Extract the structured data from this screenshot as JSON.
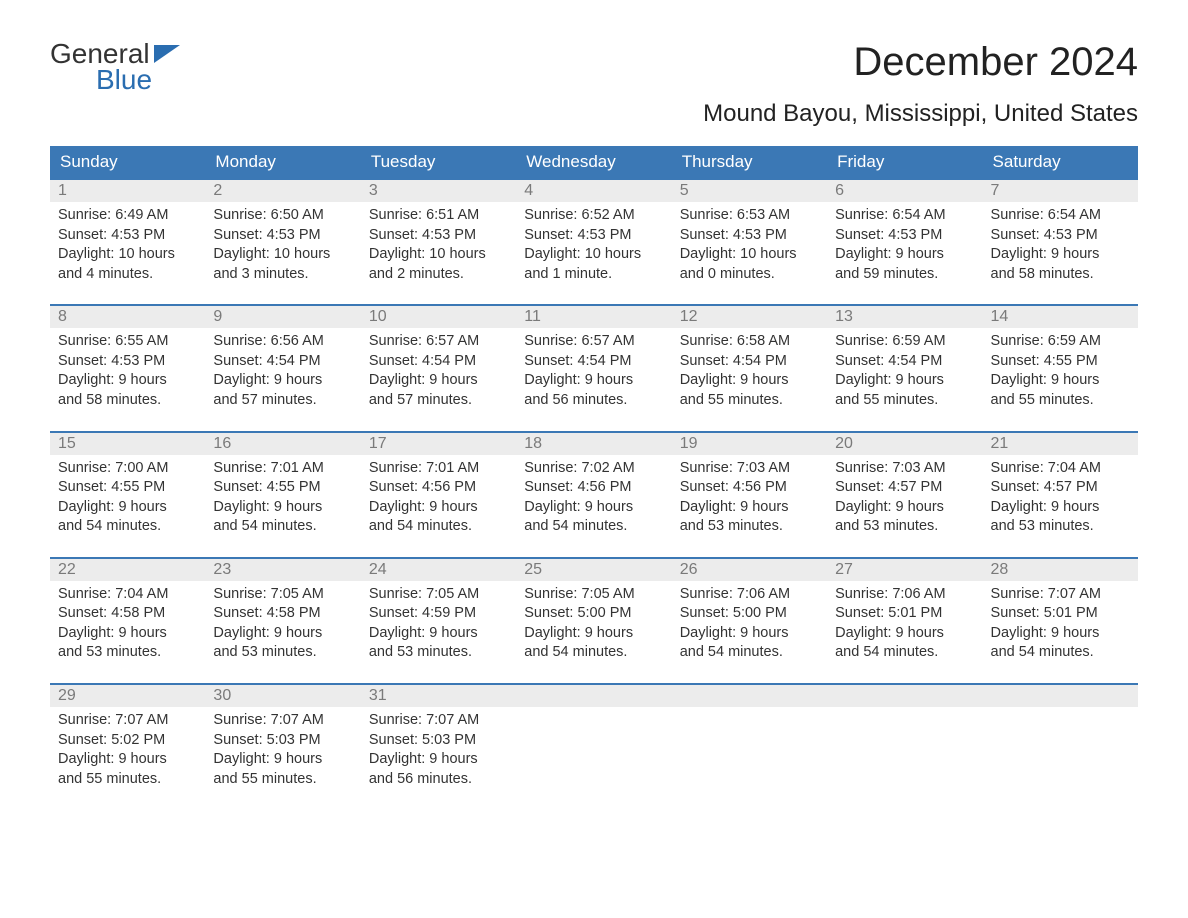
{
  "brand": {
    "top": "General",
    "bottom": "Blue",
    "flag_color": "#2a6db0"
  },
  "title": "December 2024",
  "subtitle": "Mound Bayou, Mississippi, United States",
  "colors": {
    "header_bg": "#3b78b5",
    "header_text": "#ffffff",
    "daynum_bg": "#ececec",
    "daynum_text": "#7a7a7a",
    "body_text": "#333333",
    "row_border": "#3b78b5",
    "page_bg": "#ffffff"
  },
  "fonts": {
    "title_pt": 40,
    "subtitle_pt": 24,
    "weekday_pt": 17,
    "daynum_pt": 16,
    "body_pt": 14.5
  },
  "weekdays": [
    "Sunday",
    "Monday",
    "Tuesday",
    "Wednesday",
    "Thursday",
    "Friday",
    "Saturday"
  ],
  "weeks": [
    [
      {
        "n": "1",
        "sr": "Sunrise: 6:49 AM",
        "ss": "Sunset: 4:53 PM",
        "d1": "Daylight: 10 hours",
        "d2": "and 4 minutes."
      },
      {
        "n": "2",
        "sr": "Sunrise: 6:50 AM",
        "ss": "Sunset: 4:53 PM",
        "d1": "Daylight: 10 hours",
        "d2": "and 3 minutes."
      },
      {
        "n": "3",
        "sr": "Sunrise: 6:51 AM",
        "ss": "Sunset: 4:53 PM",
        "d1": "Daylight: 10 hours",
        "d2": "and 2 minutes."
      },
      {
        "n": "4",
        "sr": "Sunrise: 6:52 AM",
        "ss": "Sunset: 4:53 PM",
        "d1": "Daylight: 10 hours",
        "d2": "and 1 minute."
      },
      {
        "n": "5",
        "sr": "Sunrise: 6:53 AM",
        "ss": "Sunset: 4:53 PM",
        "d1": "Daylight: 10 hours",
        "d2": "and 0 minutes."
      },
      {
        "n": "6",
        "sr": "Sunrise: 6:54 AM",
        "ss": "Sunset: 4:53 PM",
        "d1": "Daylight: 9 hours",
        "d2": "and 59 minutes."
      },
      {
        "n": "7",
        "sr": "Sunrise: 6:54 AM",
        "ss": "Sunset: 4:53 PM",
        "d1": "Daylight: 9 hours",
        "d2": "and 58 minutes."
      }
    ],
    [
      {
        "n": "8",
        "sr": "Sunrise: 6:55 AM",
        "ss": "Sunset: 4:53 PM",
        "d1": "Daylight: 9 hours",
        "d2": "and 58 minutes."
      },
      {
        "n": "9",
        "sr": "Sunrise: 6:56 AM",
        "ss": "Sunset: 4:54 PM",
        "d1": "Daylight: 9 hours",
        "d2": "and 57 minutes."
      },
      {
        "n": "10",
        "sr": "Sunrise: 6:57 AM",
        "ss": "Sunset: 4:54 PM",
        "d1": "Daylight: 9 hours",
        "d2": "and 57 minutes."
      },
      {
        "n": "11",
        "sr": "Sunrise: 6:57 AM",
        "ss": "Sunset: 4:54 PM",
        "d1": "Daylight: 9 hours",
        "d2": "and 56 minutes."
      },
      {
        "n": "12",
        "sr": "Sunrise: 6:58 AM",
        "ss": "Sunset: 4:54 PM",
        "d1": "Daylight: 9 hours",
        "d2": "and 55 minutes."
      },
      {
        "n": "13",
        "sr": "Sunrise: 6:59 AM",
        "ss": "Sunset: 4:54 PM",
        "d1": "Daylight: 9 hours",
        "d2": "and 55 minutes."
      },
      {
        "n": "14",
        "sr": "Sunrise: 6:59 AM",
        "ss": "Sunset: 4:55 PM",
        "d1": "Daylight: 9 hours",
        "d2": "and 55 minutes."
      }
    ],
    [
      {
        "n": "15",
        "sr": "Sunrise: 7:00 AM",
        "ss": "Sunset: 4:55 PM",
        "d1": "Daylight: 9 hours",
        "d2": "and 54 minutes."
      },
      {
        "n": "16",
        "sr": "Sunrise: 7:01 AM",
        "ss": "Sunset: 4:55 PM",
        "d1": "Daylight: 9 hours",
        "d2": "and 54 minutes."
      },
      {
        "n": "17",
        "sr": "Sunrise: 7:01 AM",
        "ss": "Sunset: 4:56 PM",
        "d1": "Daylight: 9 hours",
        "d2": "and 54 minutes."
      },
      {
        "n": "18",
        "sr": "Sunrise: 7:02 AM",
        "ss": "Sunset: 4:56 PM",
        "d1": "Daylight: 9 hours",
        "d2": "and 54 minutes."
      },
      {
        "n": "19",
        "sr": "Sunrise: 7:03 AM",
        "ss": "Sunset: 4:56 PM",
        "d1": "Daylight: 9 hours",
        "d2": "and 53 minutes."
      },
      {
        "n": "20",
        "sr": "Sunrise: 7:03 AM",
        "ss": "Sunset: 4:57 PM",
        "d1": "Daylight: 9 hours",
        "d2": "and 53 minutes."
      },
      {
        "n": "21",
        "sr": "Sunrise: 7:04 AM",
        "ss": "Sunset: 4:57 PM",
        "d1": "Daylight: 9 hours",
        "d2": "and 53 minutes."
      }
    ],
    [
      {
        "n": "22",
        "sr": "Sunrise: 7:04 AM",
        "ss": "Sunset: 4:58 PM",
        "d1": "Daylight: 9 hours",
        "d2": "and 53 minutes."
      },
      {
        "n": "23",
        "sr": "Sunrise: 7:05 AM",
        "ss": "Sunset: 4:58 PM",
        "d1": "Daylight: 9 hours",
        "d2": "and 53 minutes."
      },
      {
        "n": "24",
        "sr": "Sunrise: 7:05 AM",
        "ss": "Sunset: 4:59 PM",
        "d1": "Daylight: 9 hours",
        "d2": "and 53 minutes."
      },
      {
        "n": "25",
        "sr": "Sunrise: 7:05 AM",
        "ss": "Sunset: 5:00 PM",
        "d1": "Daylight: 9 hours",
        "d2": "and 54 minutes."
      },
      {
        "n": "26",
        "sr": "Sunrise: 7:06 AM",
        "ss": "Sunset: 5:00 PM",
        "d1": "Daylight: 9 hours",
        "d2": "and 54 minutes."
      },
      {
        "n": "27",
        "sr": "Sunrise: 7:06 AM",
        "ss": "Sunset: 5:01 PM",
        "d1": "Daylight: 9 hours",
        "d2": "and 54 minutes."
      },
      {
        "n": "28",
        "sr": "Sunrise: 7:07 AM",
        "ss": "Sunset: 5:01 PM",
        "d1": "Daylight: 9 hours",
        "d2": "and 54 minutes."
      }
    ],
    [
      {
        "n": "29",
        "sr": "Sunrise: 7:07 AM",
        "ss": "Sunset: 5:02 PM",
        "d1": "Daylight: 9 hours",
        "d2": "and 55 minutes."
      },
      {
        "n": "30",
        "sr": "Sunrise: 7:07 AM",
        "ss": "Sunset: 5:03 PM",
        "d1": "Daylight: 9 hours",
        "d2": "and 55 minutes."
      },
      {
        "n": "31",
        "sr": "Sunrise: 7:07 AM",
        "ss": "Sunset: 5:03 PM",
        "d1": "Daylight: 9 hours",
        "d2": "and 56 minutes."
      },
      {
        "empty": true
      },
      {
        "empty": true
      },
      {
        "empty": true
      },
      {
        "empty": true
      }
    ]
  ]
}
